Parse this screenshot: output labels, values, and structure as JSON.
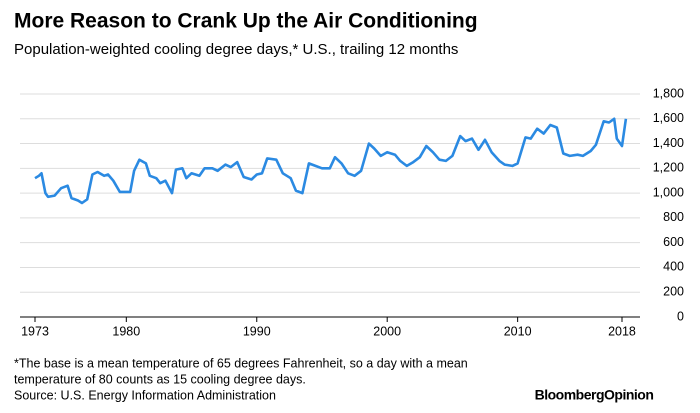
{
  "chart_data": {
    "type": "line",
    "title": "More Reason to Crank Up the Air Conditioning",
    "subtitle": "Population-weighted cooling degree days,* U.S., trailing 12 months",
    "notes": [
      "*The base is a mean temperature of 65 degrees Fahrenheit, so a day with a mean",
      "temperature of 80 counts as 15 cooling degree days.",
      "Source: U.S. Energy Information Administration"
    ],
    "brand": [
      "Bloomberg",
      "Opinion"
    ],
    "grid": true,
    "xlim": [
      1973,
      2018.1
    ],
    "xticks": [
      1973,
      1980,
      1990,
      2000,
      2010,
      2018
    ],
    "ylim": [
      0,
      1800
    ],
    "yticks": [
      0,
      200,
      400,
      600,
      800,
      {
        "value": 1000,
        "label": "1,000"
      },
      {
        "value": 1200,
        "label": "1,200"
      },
      {
        "value": 1400,
        "label": "1,400"
      },
      {
        "value": 1600,
        "label": "1,600"
      },
      {
        "value": 1800,
        "label": "1,800"
      }
    ],
    "x": [
      1973.0,
      1973.3,
      1973.5,
      1973.8,
      1974.0,
      1974.5,
      1975.0,
      1975.5,
      1975.8,
      1976.3,
      1976.6,
      1977.0,
      1977.4,
      1977.8,
      1978.3,
      1978.6,
      1979.0,
      1979.5,
      1980.3,
      1980.6,
      1981.0,
      1981.5,
      1981.8,
      1982.3,
      1982.6,
      1983.0,
      1983.5,
      1983.8,
      1984.3,
      1984.6,
      1985.0,
      1985.6,
      1986.0,
      1986.6,
      1987.0,
      1987.6,
      1988.0,
      1988.5,
      1989.0,
      1989.6,
      1990.0,
      1990.4,
      1990.8,
      1991.5,
      1992.0,
      1992.6,
      1993.0,
      1993.5,
      1994.0,
      1994.5,
      1995.0,
      1995.6,
      1996.0,
      1996.5,
      1997.0,
      1997.5,
      1998.0,
      1998.6,
      1999.0,
      1999.5,
      2000.0,
      2000.6,
      2001.0,
      2001.5,
      2002.0,
      2002.5,
      2003.0,
      2003.5,
      2004.0,
      2004.5,
      2005.0,
      2005.6,
      2006.0,
      2006.5,
      2007.0,
      2007.5,
      2008.0,
      2008.6,
      2009.0,
      2009.6,
      2010.0,
      2010.6,
      2011.0,
      2011.5,
      2012.0,
      2012.5,
      2013.0,
      2013.5,
      2014.0,
      2014.6,
      2015.0,
      2015.6,
      2016.0,
      2016.6,
      2017.0,
      2017.4,
      2017.6,
      2018.0,
      2018.3
    ],
    "series": [
      {
        "color": "#2b8ae2",
        "values": [
          1120,
          1140,
          1160,
          1000,
          970,
          980,
          1040,
          1060,
          960,
          940,
          920,
          950,
          1150,
          1170,
          1140,
          1150,
          1100,
          1010,
          1010,
          1180,
          1270,
          1240,
          1140,
          1120,
          1080,
          1100,
          1000,
          1190,
          1200,
          1120,
          1160,
          1140,
          1200,
          1200,
          1180,
          1230,
          1210,
          1250,
          1130,
          1110,
          1150,
          1160,
          1280,
          1270,
          1160,
          1120,
          1020,
          1000,
          1240,
          1220,
          1200,
          1200,
          1290,
          1240,
          1160,
          1140,
          1180,
          1400,
          1360,
          1300,
          1330,
          1310,
          1260,
          1220,
          1250,
          1290,
          1380,
          1330,
          1270,
          1260,
          1300,
          1460,
          1420,
          1440,
          1350,
          1430,
          1330,
          1260,
          1230,
          1220,
          1240,
          1450,
          1440,
          1520,
          1480,
          1550,
          1530,
          1320,
          1300,
          1310,
          1300,
          1340,
          1390,
          1580,
          1570,
          1600,
          1440,
          1380,
          1600
        ]
      }
    ]
  }
}
